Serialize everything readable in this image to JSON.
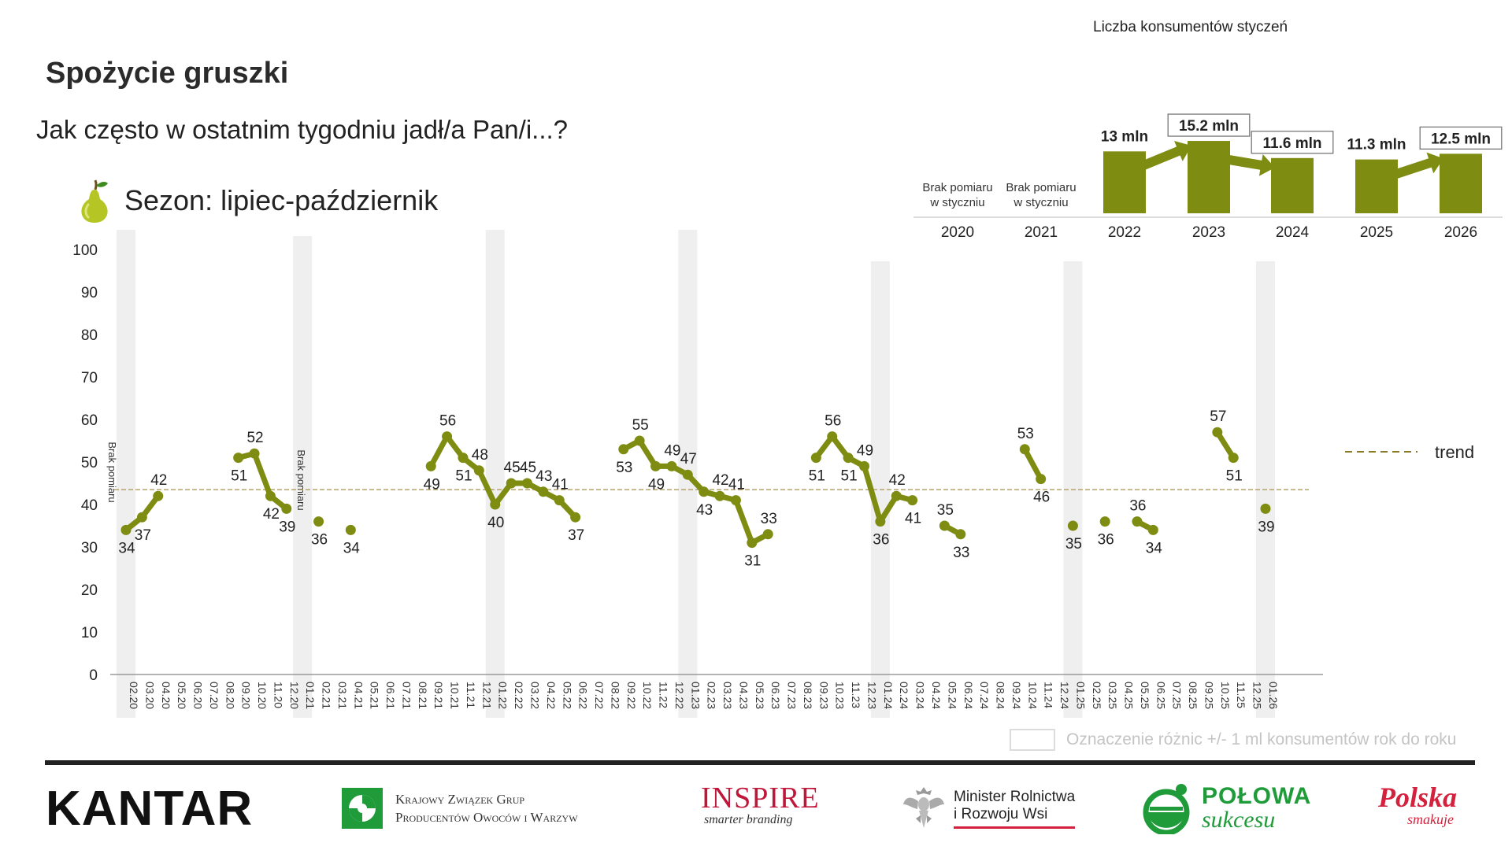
{
  "header": {
    "title": "Spożycie gruszki",
    "question": "Jak często w ostatnim tygodniu jadł/a Pan/i...?",
    "season": "Sezon: lipiec-październik"
  },
  "inset": {
    "title": "Liczba konsumentów styczeń",
    "no_measure_line1": "Brak pomiaru",
    "no_measure_line2": "w styczniu"
  },
  "legend": {
    "trend": "trend",
    "diff_note": "Oznaczenie różnic +/- 1 ml konsumentów rok do roku"
  },
  "logos": {
    "kantar": "KANTAR",
    "kzg_line1": "Krajowy Związek Grup",
    "kzg_line2": "Producentów Owoców i Warzyw",
    "inspire": "INSPIRE",
    "inspire_tag": "smarter branding",
    "minister_line1": "Minister Rolnictwa",
    "minister_line2": "i Rozwoju Wsi",
    "polowa_line1": "POŁOWA",
    "polowa_line2": "sukcesu",
    "polska_line1": "Polska",
    "polska_line2": "smakuje"
  },
  "colors": {
    "series": "#7f8c12",
    "trend": "#b8a36a",
    "band": "#efefef",
    "text": "#222222"
  },
  "chart_data": [
    {
      "type": "line",
      "ylim": [
        0,
        100
      ],
      "yticks": [
        0,
        10,
        20,
        30,
        40,
        50,
        60,
        70,
        80,
        90,
        100
      ],
      "trend_value": 43.5,
      "x": [
        "02.20",
        "03.20",
        "04.20",
        "05.20",
        "06.20",
        "07.20",
        "08.20",
        "09.20",
        "10.20",
        "11.20",
        "12.20",
        "01.21",
        "02.21",
        "03.21",
        "04.21",
        "05.21",
        "06.21",
        "07.21",
        "08.21",
        "09.21",
        "10.21",
        "11.21",
        "12.21",
        "01.22",
        "02.22",
        "03.22",
        "04.22",
        "05.22",
        "06.22",
        "07.22",
        "08.22",
        "09.22",
        "10.22",
        "11.22",
        "12.22",
        "01.23",
        "02.23",
        "03.23",
        "04.23",
        "05.23",
        "06.23",
        "07.23",
        "08.23",
        "09.23",
        "10.23",
        "11.23",
        "12.23",
        "01.24",
        "02.24",
        "03.24",
        "04.24",
        "05.24",
        "06.24",
        "07.24",
        "08.24",
        "09.24",
        "10.24",
        "11.24",
        "12.24",
        "01.25",
        "02.25",
        "03.25",
        "04.25",
        "05.25",
        "06.25",
        "07.25",
        "08.25",
        "09.25",
        "10.25",
        "11.25",
        "12.25",
        "01.26"
      ],
      "values": [
        34,
        37,
        42,
        null,
        null,
        null,
        null,
        51,
        52,
        42,
        39,
        null,
        36,
        null,
        34,
        null,
        null,
        null,
        null,
        49,
        56,
        51,
        48,
        40,
        45,
        45,
        43,
        41,
        37,
        null,
        null,
        53,
        55,
        49,
        49,
        47,
        43,
        42,
        41,
        31,
        33,
        null,
        null,
        51,
        56,
        51,
        49,
        36,
        42,
        41,
        null,
        35,
        33,
        null,
        null,
        null,
        53,
        46,
        null,
        35,
        null,
        36,
        null,
        36,
        34,
        null,
        null,
        null,
        57,
        51,
        null,
        39
      ],
      "january_bands": [
        "02.20",
        "01.21",
        "01.22",
        "01.23",
        "01.24",
        "01.25",
        "01.26"
      ],
      "band_annotation": "Brak pomiaru",
      "band_annotation_months": [
        "02.20",
        "01.21"
      ]
    },
    {
      "type": "bar",
      "title": "Liczba konsumentów styczeń",
      "categories": [
        "2020",
        "2021",
        "2022",
        "2023",
        "2024",
        "2025",
        "2026"
      ],
      "values": [
        null,
        null,
        13,
        15.2,
        11.6,
        11.3,
        12.5
      ],
      "value_labels": [
        "",
        "",
        "13 mln",
        "15.2 mln",
        "11.6 mln",
        "11.3 mln",
        "12.5 mln"
      ],
      "boxed_labels": [
        "2023",
        "2024",
        "2026"
      ],
      "arrows": [
        {
          "from": "2022",
          "to": "2023",
          "direction": "up"
        },
        {
          "from": "2023",
          "to": "2024",
          "direction": "down"
        },
        {
          "from": "2025",
          "to": "2026",
          "direction": "up"
        }
      ]
    }
  ]
}
